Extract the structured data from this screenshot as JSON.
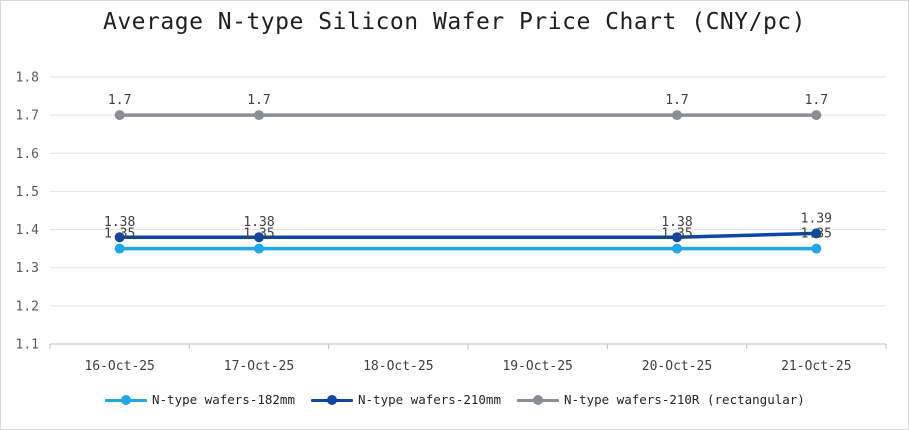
{
  "chart_data": {
    "type": "line",
    "title": "Average N-type Silicon Wafer Price Chart (CNY/pc)",
    "categories": [
      "16-Oct-25",
      "17-Oct-25",
      "18-Oct-25",
      "19-Oct-25",
      "20-Oct-25",
      "21-Oct-25"
    ],
    "ylim": [
      1.1,
      1.8
    ],
    "yticks": [
      "1.1",
      "1.2",
      "1.3",
      "1.4",
      "1.5",
      "1.6",
      "1.7",
      "1.8"
    ],
    "grid": true,
    "legend_position": "bottom",
    "series": [
      {
        "name": "N-type wafers-182mm",
        "color": "#1fa8e8",
        "values": [
          1.35,
          1.35,
          null,
          null,
          1.35,
          1.35
        ],
        "labels": [
          "1.35",
          "1.35",
          "",
          "",
          "1.35",
          "1.35"
        ]
      },
      {
        "name": "N-type wafers-210mm",
        "color": "#0d47a1",
        "values": [
          1.38,
          1.38,
          null,
          null,
          1.38,
          1.39
        ],
        "labels": [
          "1.38",
          "1.38",
          "",
          "",
          "1.38",
          "1.39"
        ]
      },
      {
        "name": "N-type wafers-210R (rectangular)",
        "color": "#888e93",
        "values": [
          1.7,
          1.7,
          null,
          null,
          1.7,
          1.7
        ],
        "labels": [
          "1.7",
          "1.7",
          "",
          "",
          "1.7",
          "1.7"
        ]
      }
    ]
  }
}
